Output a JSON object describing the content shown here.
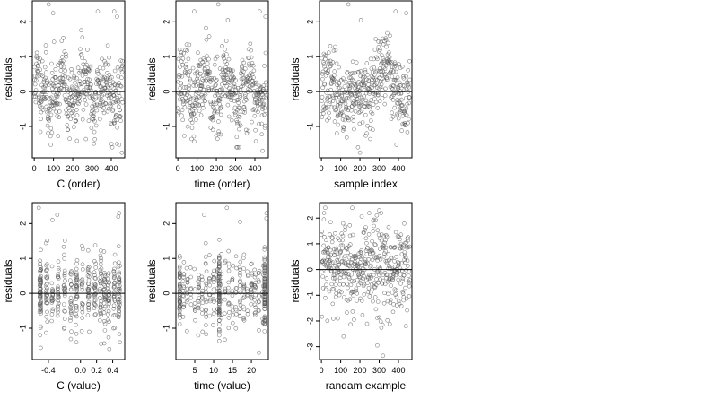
{
  "chart_data": [
    {
      "type": "scatter",
      "xlabel": "C (order)",
      "ylabel": "residuals",
      "xlim": [
        -10,
        470
      ],
      "ylim": [
        -1.9,
        2.6
      ],
      "xticks": [
        "0",
        "100",
        "200",
        "300",
        "400"
      ],
      "yticks": [
        "-1",
        "0",
        "1",
        "2"
      ],
      "reference_line_y": 0,
      "n_points": 460,
      "seed": 11,
      "pattern": "order",
      "highlights": [
        [
          75,
          2.5
        ],
        [
          98,
          2.25
        ],
        [
          330,
          2.3
        ],
        [
          415,
          2.3
        ],
        [
          430,
          2.15
        ],
        [
          455,
          -1.75
        ]
      ]
    },
    {
      "type": "scatter",
      "xlabel": "time (order)",
      "ylabel": "residuals",
      "xlim": [
        -10,
        470
      ],
      "ylim": [
        -1.9,
        2.6
      ],
      "xticks": [
        "0",
        "100",
        "200",
        "300",
        "400"
      ],
      "yticks": [
        "-1",
        "0",
        "1",
        "2"
      ],
      "reference_line_y": 0,
      "n_points": 460,
      "seed": 23,
      "pattern": "order",
      "highlights": [
        [
          85,
          2.3
        ],
        [
          210,
          2.5
        ],
        [
          260,
          2.05
        ],
        [
          425,
          2.3
        ],
        [
          455,
          2.15
        ],
        [
          440,
          -1.7
        ]
      ]
    },
    {
      "type": "scatter",
      "xlabel": "sample index",
      "ylabel": "residuals",
      "xlim": [
        -10,
        470
      ],
      "ylim": [
        -1.9,
        2.6
      ],
      "xticks": [
        "0",
        "100",
        "200",
        "300",
        "400"
      ],
      "yticks": [
        "-1",
        "0",
        "1",
        "2"
      ],
      "reference_line_y": 0,
      "n_points": 460,
      "seed": 37,
      "pattern": "index",
      "highlights": [
        [
          140,
          2.5
        ],
        [
          205,
          2.05
        ],
        [
          385,
          2.3
        ],
        [
          440,
          2.25
        ],
        [
          190,
          -1.6
        ],
        [
          200,
          -1.75
        ]
      ]
    },
    {
      "type": "scatter",
      "xlabel": "C (value)",
      "ylabel": "residuals",
      "xlim": [
        -0.6,
        0.55
      ],
      "ylim": [
        -1.9,
        2.6
      ],
      "xticks": [
        "-0.4",
        "0.0",
        "0.2",
        "0.4"
      ],
      "xtick_values": [
        -0.4,
        0.0,
        0.2,
        0.4
      ],
      "yticks": [
        "-1",
        "0",
        "1",
        "2"
      ],
      "reference_line_y": 0,
      "n_points": 460,
      "seed": 53,
      "pattern": "c_value",
      "highlights": [
        [
          -0.52,
          2.45
        ],
        [
          -0.29,
          2.25
        ],
        [
          -0.35,
          2.1
        ],
        [
          0.48,
          2.3
        ],
        [
          0.47,
          2.2
        ],
        [
          0.53,
          -1.75
        ]
      ]
    },
    {
      "type": "scatter",
      "xlabel": "time (value)",
      "ylabel": "residuals",
      "xlim": [
        0,
        24.5
      ],
      "ylim": [
        -1.9,
        2.6
      ],
      "xticks": [
        "5",
        "10",
        "15",
        "20"
      ],
      "xtick_values": [
        5,
        10,
        15,
        20
      ],
      "yticks": [
        "-1",
        "0",
        "1",
        "2"
      ],
      "reference_line_y": 0,
      "n_points": 460,
      "seed": 71,
      "pattern": "time_value",
      "highlights": [
        [
          7.5,
          2.25
        ],
        [
          13.5,
          2.45
        ],
        [
          17,
          2.05
        ],
        [
          24,
          2.3
        ],
        [
          24,
          2.15
        ],
        [
          22,
          -1.7
        ]
      ]
    },
    {
      "type": "scatter",
      "xlabel": "randam example",
      "ylabel": "residuals",
      "xlim": [
        -10,
        470
      ],
      "ylim": [
        -3.5,
        2.6
      ],
      "xticks": [
        "0",
        "100",
        "200",
        "300",
        "400"
      ],
      "yticks": [
        "-3",
        "-2",
        "-1",
        "0",
        "1",
        "2"
      ],
      "reference_line_y": 0,
      "n_points": 460,
      "seed": 97,
      "pattern": "random",
      "highlights": [
        [
          20,
          2.4
        ],
        [
          160,
          2.4
        ],
        [
          300,
          2.3
        ],
        [
          320,
          -3.35
        ],
        [
          290,
          -2.95
        ]
      ]
    }
  ]
}
